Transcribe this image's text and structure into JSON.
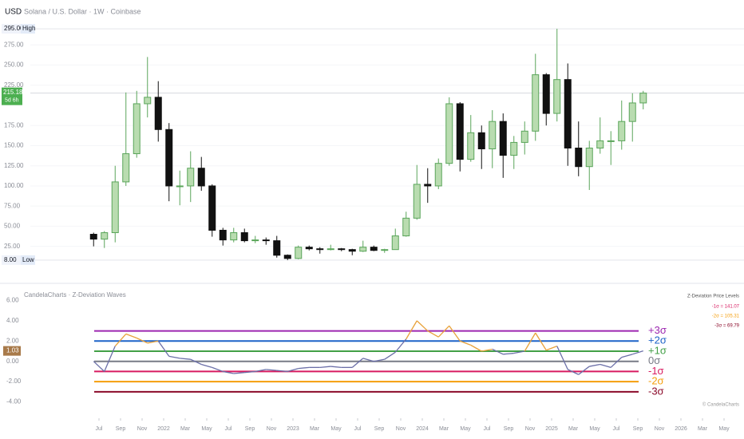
{
  "chart_data": [
    {
      "type": "candlestick",
      "currency": "USD",
      "title": "Solana / U.S. Dollar · 1W · Coinbase",
      "up_color": "#5aa55a",
      "down_color": "#111111",
      "x": [
        "2021-06",
        "2021-07",
        "2021-08",
        "2021-09",
        "2021-10",
        "2021-11",
        "2021-12",
        "2022-01",
        "2022-02",
        "2022-03",
        "2022-04",
        "2022-05",
        "2022-06",
        "2022-07",
        "2022-08",
        "2022-09",
        "2022-10",
        "2022-11",
        "2022-12",
        "2023-01",
        "2023-02",
        "2023-03",
        "2023-04",
        "2023-05",
        "2023-06",
        "2023-07",
        "2023-08",
        "2023-09",
        "2023-10",
        "2023-11",
        "2023-12",
        "2024-01",
        "2024-02",
        "2024-03",
        "2024-04",
        "2024-05",
        "2024-06",
        "2024-07",
        "2024-08",
        "2024-09",
        "2024-10",
        "2024-11",
        "2024-12",
        "2025-01",
        "2025-02",
        "2025-03",
        "2025-04",
        "2025-05",
        "2025-06",
        "2025-07",
        "2025-08",
        "2025-09"
      ],
      "open": [
        40,
        34,
        42,
        105,
        140,
        202,
        210,
        170,
        100,
        100,
        122,
        100,
        45,
        33,
        42,
        32,
        33,
        32,
        14,
        10,
        24,
        22,
        21,
        22,
        21,
        19,
        24,
        20,
        21,
        38,
        60,
        102,
        100,
        128,
        202,
        133,
        166,
        146,
        180,
        138,
        154,
        168,
        238,
        190,
        232,
        147,
        124,
        147,
        156,
        156,
        180,
        203
      ],
      "high": [
        42,
        44,
        125,
        216,
        218,
        260,
        230,
        178,
        119,
        143,
        136,
        102,
        48,
        48,
        47,
        38,
        36,
        38,
        15,
        26,
        26,
        24,
        27,
        23,
        22,
        32,
        26,
        22,
        47,
        68,
        126,
        122,
        134,
        210,
        204,
        188,
        175,
        194,
        190,
        162,
        180,
        264,
        240,
        295,
        252,
        180,
        156,
        185,
        168,
        206,
        215,
        218
      ],
      "low": [
        25,
        23,
        30,
        100,
        135,
        185,
        155,
        81,
        76,
        80,
        94,
        37,
        26,
        30,
        30,
        29,
        27,
        11,
        8,
        9,
        20,
        16,
        20,
        19,
        14,
        18,
        19,
        17,
        21,
        37,
        58,
        79,
        96,
        125,
        118,
        130,
        121,
        122,
        110,
        121,
        139,
        156,
        175,
        180,
        125,
        112,
        95,
        140,
        126,
        145,
        155,
        195
      ],
      "close": [
        34,
        42,
        105,
        140,
        202,
        210,
        170,
        100,
        100,
        122,
        100,
        45,
        33,
        42,
        32,
        33,
        32,
        14,
        10,
        24,
        22,
        21,
        22,
        21,
        19,
        24,
        20,
        21,
        38,
        60,
        102,
        100,
        128,
        202,
        133,
        166,
        146,
        180,
        138,
        154,
        168,
        238,
        190,
        232,
        147,
        124,
        147,
        156,
        156,
        180,
        203,
        215.18
      ],
      "ylim": [
        -11,
        303
      ],
      "yticks": [
        {
          "value": 25,
          "label": "25.00"
        },
        {
          "value": 50,
          "label": "50.00"
        },
        {
          "value": 75,
          "label": "75.00"
        },
        {
          "value": 100,
          "label": "100.00"
        },
        {
          "value": 125,
          "label": "125.00"
        },
        {
          "value": 150,
          "label": "150.00"
        },
        {
          "value": 175,
          "label": "175.00"
        },
        {
          "value": 225,
          "label": "225.00"
        },
        {
          "value": 250,
          "label": "250.00"
        },
        {
          "value": 275,
          "label": "275.00"
        }
      ],
      "markers": [
        {
          "value": 295,
          "label": "295.00",
          "tag": "High"
        },
        {
          "value": 8,
          "label": "8.00",
          "tag": "Low"
        }
      ],
      "last_price": {
        "value": 215.18,
        "label": "215.18",
        "countdown": "5d 6h",
        "color": "#4caf50"
      },
      "xticks": [
        {
          "value": "2021-07",
          "label": "Jul"
        },
        {
          "value": "2021-09",
          "label": "Sep"
        },
        {
          "value": "2021-11",
          "label": "Nov"
        },
        {
          "value": "2022-01",
          "label": "2022"
        },
        {
          "value": "2022-03",
          "label": "Mar"
        },
        {
          "value": "2022-05",
          "label": "May"
        },
        {
          "value": "2022-07",
          "label": "Jul"
        },
        {
          "value": "2022-09",
          "label": "Sep"
        },
        {
          "value": "2022-11",
          "label": "Nov"
        },
        {
          "value": "2023-01",
          "label": "2023"
        },
        {
          "value": "2023-03",
          "label": "Mar"
        },
        {
          "value": "2023-05",
          "label": "May"
        },
        {
          "value": "2023-07",
          "label": "Jul"
        },
        {
          "value": "2023-09",
          "label": "Sep"
        },
        {
          "value": "2023-11",
          "label": "Nov"
        },
        {
          "value": "2024-01",
          "label": "2024"
        },
        {
          "value": "2024-03",
          "label": "Mar"
        },
        {
          "value": "2024-05",
          "label": "May"
        },
        {
          "value": "2024-07",
          "label": "Jul"
        },
        {
          "value": "2024-09",
          "label": "Sep"
        },
        {
          "value": "2024-11",
          "label": "Nov"
        },
        {
          "value": "2025-01",
          "label": "2025"
        },
        {
          "value": "2025-03",
          "label": "Mar"
        },
        {
          "value": "2025-05",
          "label": "May"
        },
        {
          "value": "2025-07",
          "label": "Jul"
        },
        {
          "value": "2025-09",
          "label": "Sep"
        },
        {
          "value": "2025-11",
          "label": "Nov"
        },
        {
          "value": "2026-01",
          "label": "2026"
        },
        {
          "value": "2026-03",
          "label": "Mar"
        },
        {
          "value": "2026-05",
          "label": "May"
        }
      ]
    },
    {
      "type": "line",
      "title": "CandelaCharts · Z-Deviation Waves",
      "values": [
        0,
        -1,
        1.5,
        2.7,
        2.3,
        1.8,
        2.0,
        0.5,
        0.3,
        0.2,
        -0.3,
        -0.6,
        -1.0,
        -1.2,
        -1.1,
        -1.0,
        -0.8,
        -0.9,
        -1.0,
        -0.7,
        -0.6,
        -0.6,
        -0.5,
        -0.6,
        -0.6,
        0.3,
        0.0,
        0.2,
        0.9,
        2.2,
        4.0,
        3.0,
        2.4,
        3.5,
        2.0,
        1.6,
        1.0,
        1.2,
        0.7,
        0.8,
        1.0,
        2.8,
        1.1,
        1.5,
        -0.8,
        -1.3,
        -0.5,
        -0.3,
        -0.6,
        0.4,
        0.7,
        1.03
      ],
      "color_above": "#e8a23a",
      "color_below": "#6b6fa8",
      "ylim": [
        -4.9,
        6.9
      ],
      "yticks": [
        {
          "value": 6,
          "label": "6.00"
        },
        {
          "value": 4,
          "label": "4.00"
        },
        {
          "value": 2,
          "label": "2.00"
        },
        {
          "value": 0,
          "label": "0.00"
        },
        {
          "value": -2,
          "label": "-2.00"
        },
        {
          "value": -4,
          "label": "-4.00"
        }
      ],
      "last_value": {
        "value": 1.03,
        "label": "1.03",
        "color": "#a87a4a"
      },
      "levels": [
        {
          "value": 3,
          "label": "+3σ",
          "color": "#9c27b0"
        },
        {
          "value": 2,
          "label": "+2σ",
          "color": "#1e63c8"
        },
        {
          "value": 1,
          "label": "+1σ",
          "color": "#43a047"
        },
        {
          "value": 0,
          "label": "0σ",
          "color": "#787b86"
        },
        {
          "value": -1,
          "label": "-1σ",
          "color": "#d81b60"
        },
        {
          "value": -2,
          "label": "-2σ",
          "color": "#f59e0b"
        },
        {
          "value": -3,
          "label": "-3σ",
          "color": "#8b0a2a"
        }
      ],
      "legend_title": "Z-Deviation Price Levels",
      "legend": [
        {
          "label": "-1σ = 141.07",
          "color": "#d81b60"
        },
        {
          "label": "-2σ = 105.31",
          "color": "#f59e0b"
        },
        {
          "label": "-3σ = 69.79",
          "color": "#8b0a2a"
        }
      ],
      "credit": "© CandelaCharts"
    }
  ]
}
